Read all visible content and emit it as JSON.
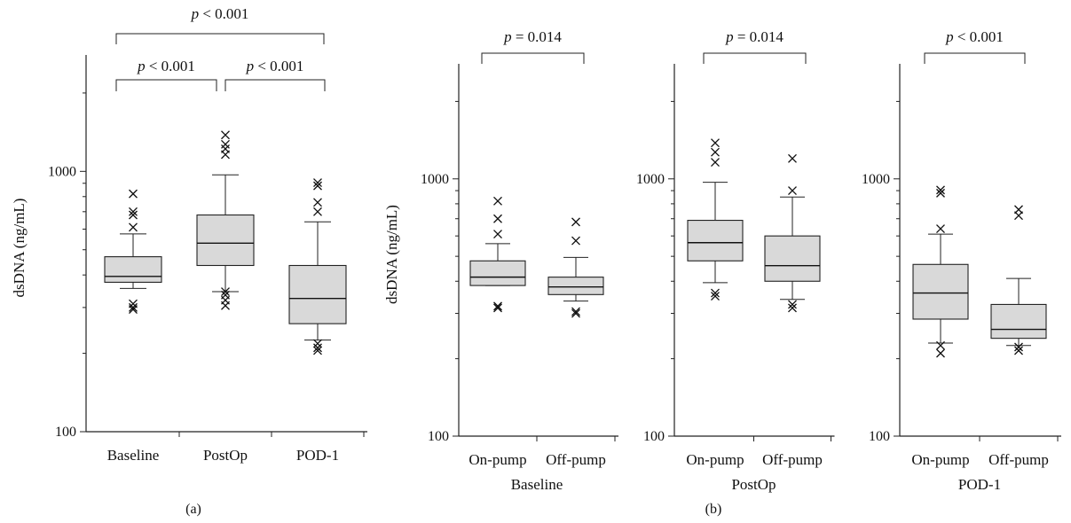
{
  "chart_data": [
    {
      "type": "box",
      "ylabel": "dsDNA (ng/mL)",
      "yscale": "log",
      "ylim": [
        100,
        2800
      ],
      "yticks": [
        100,
        1000
      ],
      "categories": [
        "Baseline",
        "PostOp",
        "POD-1"
      ],
      "boxes": [
        {
          "min": 355,
          "q1": 375,
          "median": 395,
          "q3": 470,
          "max": 575,
          "outliers": [
            820,
            700,
            680,
            610,
            310,
            300,
            295
          ]
        },
        {
          "min": 345,
          "q1": 435,
          "median": 530,
          "q3": 680,
          "max": 970,
          "outliers": [
            1380,
            1270,
            1220,
            1160,
            345,
            335,
            320,
            305
          ]
        },
        {
          "min": 225,
          "q1": 260,
          "median": 325,
          "q3": 435,
          "max": 640,
          "outliers": [
            905,
            880,
            760,
            700,
            218,
            210,
            205
          ]
        }
      ],
      "comparisons": [
        {
          "from": 0,
          "to": 2,
          "label": "p < 0.001"
        },
        {
          "from": 0,
          "to": 1,
          "label": "p < 0.001"
        },
        {
          "from": 1,
          "to": 2,
          "label": "p < 0.001"
        }
      ],
      "panel_label": "(a)"
    },
    {
      "type": "box",
      "ylabel": "dsDNA (ng/mL)",
      "yscale": "log",
      "ylim": [
        100,
        2800
      ],
      "yticks": [
        100,
        1000
      ],
      "group": "Baseline",
      "categories": [
        "On-pump",
        "Off-pump"
      ],
      "boxes": [
        {
          "min": 385,
          "q1": 385,
          "median": 415,
          "q3": 480,
          "max": 560,
          "outliers": [
            820,
            700,
            610,
            320,
            315
          ]
        },
        {
          "min": 335,
          "q1": 355,
          "median": 380,
          "q3": 415,
          "max": 495,
          "outliers": [
            680,
            575,
            305,
            300
          ]
        }
      ],
      "comparisons": [
        {
          "from": 0,
          "to": 1,
          "label": "p = 0.014"
        }
      ]
    },
    {
      "type": "box",
      "yscale": "log",
      "ylim": [
        100,
        2800
      ],
      "yticks": [
        100,
        1000
      ],
      "group": "PostOp",
      "categories": [
        "On-pump",
        "Off-pump"
      ],
      "boxes": [
        {
          "min": 395,
          "q1": 480,
          "median": 565,
          "q3": 690,
          "max": 970,
          "outliers": [
            1380,
            1270,
            1160,
            360,
            350
          ]
        },
        {
          "min": 340,
          "q1": 400,
          "median": 460,
          "q3": 600,
          "max": 850,
          "outliers": [
            1200,
            900,
            325,
            315
          ]
        }
      ],
      "comparisons": [
        {
          "from": 0,
          "to": 1,
          "label": "p = 0.014"
        }
      ]
    },
    {
      "type": "box",
      "yscale": "log",
      "ylim": [
        100,
        2800
      ],
      "yticks": [
        100,
        1000
      ],
      "group": "POD-1",
      "categories": [
        "On-pump",
        "Off-pump"
      ],
      "boxes": [
        {
          "min": 230,
          "q1": 285,
          "median": 360,
          "q3": 465,
          "max": 610,
          "outliers": [
            905,
            880,
            640,
            225,
            210
          ]
        },
        {
          "min": 225,
          "q1": 240,
          "median": 260,
          "q3": 325,
          "max": 410,
          "outliers": [
            760,
            720,
            222,
            215
          ]
        }
      ],
      "comparisons": [
        {
          "from": 0,
          "to": 1,
          "label": "p < 0.001"
        }
      ]
    }
  ],
  "figure_labels": {
    "a": "(a)",
    "b": "(b)"
  }
}
